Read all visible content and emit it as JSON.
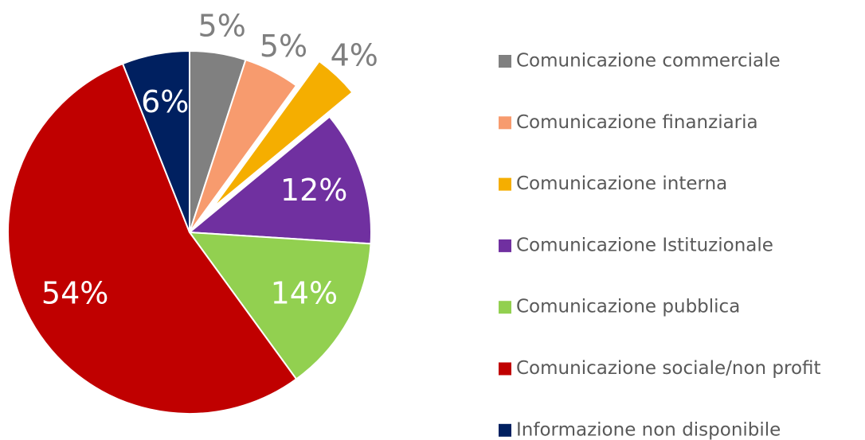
{
  "chart_data": {
    "type": "pie",
    "categories": [
      "Comunicazione commerciale",
      "Comunicazione finanziaria",
      "Comunicazione interna",
      "Comunicazione Istituzionale",
      "Comunicazione pubblica",
      "Comunicazione sociale/non profit",
      "Informazione non disponibile"
    ],
    "values": [
      5,
      5,
      4,
      12,
      14,
      54,
      6
    ],
    "value_labels": [
      "5%",
      "5%",
      "4%",
      "12%",
      "14%",
      "54%",
      "6%"
    ],
    "colors": [
      "#808080",
      "#f79b6e",
      "#f5ae00",
      "#7030a0",
      "#92d050",
      "#c00000",
      "#002060"
    ],
    "exploded": [
      false,
      false,
      true,
      false,
      false,
      false,
      false
    ],
    "legend": "right"
  }
}
